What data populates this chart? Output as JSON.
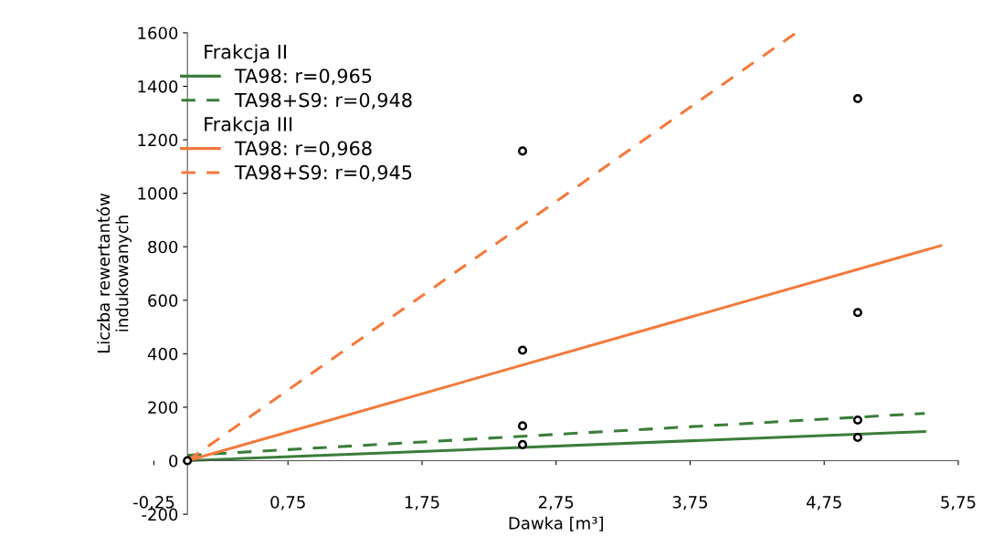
{
  "chart_data": {
    "type": "line",
    "xlabel": "Dawka [m³]",
    "ylabel": "Liczba rewertantów\nindukowanych",
    "xlim": [
      -0.25,
      5.75
    ],
    "xticks": [
      {
        "value": -0.25,
        "label": "-0,25"
      },
      {
        "value": 0.75,
        "label": "0,75"
      },
      {
        "value": 1.75,
        "label": "1,75"
      },
      {
        "value": 2.75,
        "label": "2,75"
      },
      {
        "value": 3.75,
        "label": "3,75"
      },
      {
        "value": 4.75,
        "label": "4,75"
      },
      {
        "value": 5.75,
        "label": "5,75"
      }
    ],
    "ylim": [
      -200,
      1600
    ],
    "yticks": [
      -200,
      0,
      200,
      400,
      600,
      800,
      1000,
      1200,
      1400,
      1600
    ],
    "grid": false,
    "legend": "top left",
    "annotations": [
      "Frakcja II",
      "Frakcja III"
    ],
    "series": [
      {
        "name": "TA98: r=0,965",
        "color": "#3a7d3a",
        "line_style": "solid",
        "x": [
          0,
          5.5
        ],
        "values": [
          0,
          109
        ]
      },
      {
        "name": "TA98+S9: r=0,948",
        "color": "#3a7d3a",
        "line_style": "dashed",
        "x": [
          0,
          5.5
        ],
        "values": [
          20,
          177
        ]
      },
      {
        "name": "TA98: r=0,968",
        "color": "#f4793b",
        "line_style": "solid",
        "x": [
          0,
          5.62
        ],
        "values": [
          0,
          804
        ]
      },
      {
        "name": "TA98+S9: r=0,945",
        "color": "#f4793b",
        "line_style": "dashed",
        "x": [
          0,
          4.54
        ],
        "values": [
          0,
          1600
        ]
      },
      {
        "type": "scatter",
        "color": "#000000",
        "marker": "circle",
        "x": [
          0,
          2.5,
          2.5,
          2.5,
          2.5,
          5,
          5,
          5,
          5
        ],
        "values": [
          0,
          1158,
          413,
          130,
          60,
          1354,
          554,
          152,
          87
        ]
      }
    ]
  }
}
